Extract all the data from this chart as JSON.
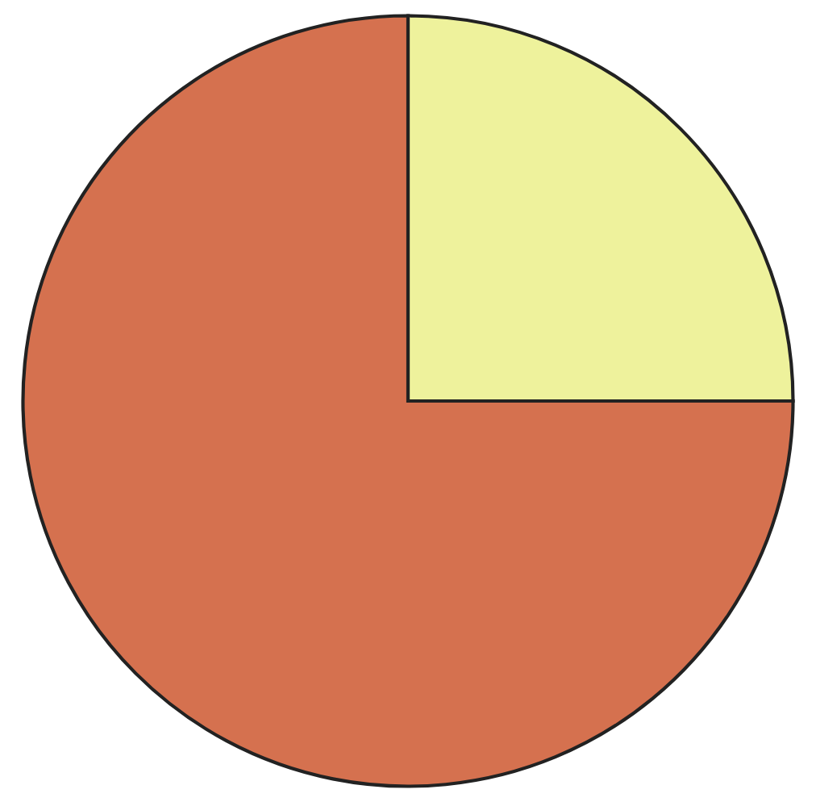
{
  "chart_data": {
    "type": "pie",
    "categories": [
      null,
      null
    ],
    "values": [
      25,
      75
    ],
    "colors": [
      "#eef29c",
      "#d5714f"
    ]
  }
}
